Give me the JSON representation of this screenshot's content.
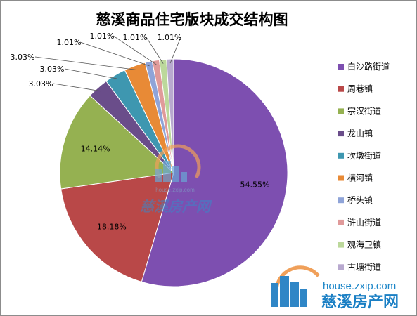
{
  "chart_data": {
    "type": "pie",
    "title": "慈溪商品住宅版块成交结构图",
    "categories": [
      "白沙路街道",
      "周巷镇",
      "宗汉街道",
      "龙山镇",
      "坎墩街道",
      "横河镇",
      "桥头镇",
      "浒山街道",
      "观海卫镇",
      "古塘街道"
    ],
    "values": [
      54.55,
      18.18,
      14.14,
      3.03,
      3.03,
      3.03,
      1.01,
      1.01,
      1.01,
      1.01
    ],
    "labels": [
      "54.55%",
      "18.18%",
      "14.14%",
      "3.03%",
      "3.03%",
      "3.03%",
      "1.01%",
      "1.01%",
      "1.01%",
      "1.01%"
    ],
    "colors": [
      "#7d4fb0",
      "#b94848",
      "#95b151",
      "#6a4d8a",
      "#3e97b0",
      "#e88a36",
      "#8fa4d8",
      "#e09a9a",
      "#bcd89b",
      "#b8a9cf"
    ],
    "legend": "right",
    "start_angle": "12 o'clock, clockwise"
  },
  "watermark": {
    "url": "house.zxip.com",
    "name": "慈溪房产网",
    "center_name": "慈溪房产网",
    "center_url": "house.zxip.com"
  }
}
